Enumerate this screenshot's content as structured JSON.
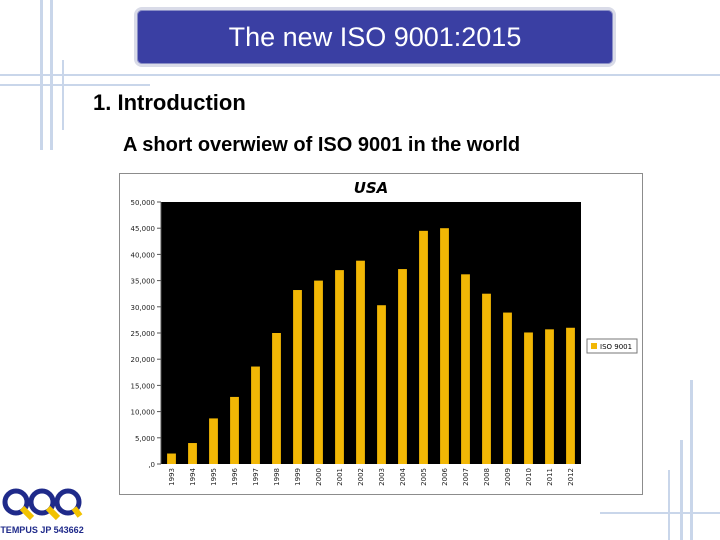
{
  "slide": {
    "title": "The new ISO 9001:2015",
    "heading": "1. Introduction",
    "subheading": "A short overwiew of ISO 9001 in the world"
  },
  "logo": {
    "text": "TEMPUS JP 543662",
    "letters": "QQQ"
  },
  "colors": {
    "title_bg": "#3a3fa3",
    "chart_plot_bg": "#000000",
    "bar": "#f2b705",
    "accent_lines": "#c9d6ea"
  },
  "chart_data": {
    "type": "bar",
    "title": "USA",
    "xlabel": "",
    "ylabel": "",
    "categories": [
      "1993",
      "1994",
      "1995",
      "1996",
      "1997",
      "1998",
      "1999",
      "2000",
      "2001",
      "2002",
      "2003",
      "2004",
      "2005",
      "2006",
      "2007",
      "2008",
      "2009",
      "2010",
      "2011",
      "2012"
    ],
    "series": [
      {
        "name": "ISO 9001",
        "values": [
          2000,
          4000,
          8700,
          12800,
          18600,
          25000,
          33200,
          35000,
          37000,
          38800,
          30300,
          37200,
          44500,
          45000,
          36200,
          32500,
          28900,
          25100,
          25700,
          26000
        ]
      }
    ],
    "ylim": [
      0,
      50000
    ],
    "yticks": [
      0,
      5000,
      10000,
      15000,
      20000,
      25000,
      30000,
      35000,
      40000,
      45000,
      50000
    ],
    "ytick_labels": [
      ",0",
      "5,000",
      "10,000",
      "15,000",
      "20,000",
      "25,000",
      "30,000",
      "35,000",
      "40,000",
      "45,000",
      "50,000"
    ],
    "grid": false,
    "legend": "right"
  }
}
